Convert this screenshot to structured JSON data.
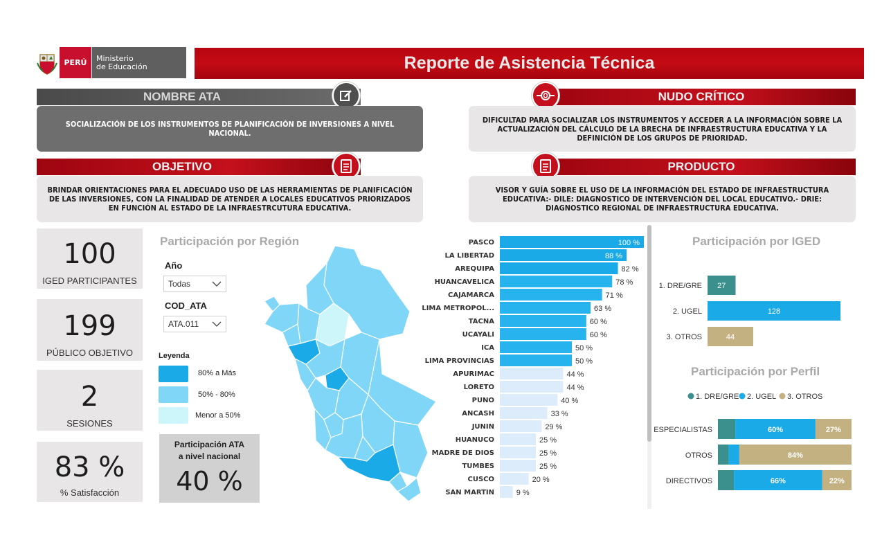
{
  "header": {
    "peru_label": "PERÚ",
    "ministry_line1": "Ministerio",
    "ministry_line2": "de Educación",
    "title": "Reporte de Asistencia Técnica"
  },
  "sections": {
    "nombre_ata": {
      "title": "NOMBRE ATA",
      "text": "SOCIALIZACIÓN DE LOS INSTRUMENTOS DE PLANIFICACIÓN DE INVERSIONES A NIVEL NACIONAL."
    },
    "nudo_critico": {
      "title": "NUDO CRÍTICO",
      "text": "DIFICULTAD PARA SOCIALIZAR LOS INSTRUMENTOS Y ACCEDER  A LA INFORMACIÓN SOBRE LA ACTUALIZACIÓN DEL CÁLCULO DE LA BRECHA DE INFRAESTRUCTURA EDUCATIVA Y LA DEFINICIÓN DE LOS GRUPOS DE PRIORIDAD."
    },
    "objetivo": {
      "title": "OBJETIVO",
      "text": "BRINDAR ORIENTACIONES PARA EL ADECUADO USO DE LAS HERRAMIENTAS DE PLANIFICACIÓN DE LAS INVERSIONES, CON LA FINALIDAD DE ATENDER A LOCALES EDUCATIVOS PRIORIZADOS EN FUNCIÓN AL ESTADO DE LA INFRAESTRCUTURA EDUCATIVA."
    },
    "producto": {
      "title": "PRODUCTO",
      "text": "VISOR Y GUÍA SOBRE EL USO DE LA INFORMACIÓN DEL ESTADO DE INFRAESTRUCTURA EDUCATIVA:- DILE: DIAGNOSTICO DE INTERVENCIÓN DEL LOCAL EDUCATIVO.- DRIE: DIAGNOSTICO REGIONAL DE INFRAESTRUCTURA EDUCATIVA."
    }
  },
  "kpis": [
    {
      "value": "100",
      "label": "IGED PARTICIPANTES"
    },
    {
      "value": "199",
      "label": "PÚBLICO OBJETIVO"
    },
    {
      "value": "2",
      "label": "SESIONES"
    },
    {
      "value": "83 %",
      "label": "% Satisfacción"
    }
  ],
  "region_panel": {
    "title": "Participación por Región",
    "filter_year_label": "Año",
    "filter_year_value": "Todas",
    "filter_ata_label": "COD_ATA",
    "filter_ata_value": "ATA.011",
    "legend_title": "Leyenda",
    "legend": [
      {
        "label": "80% a Más",
        "color": "#1aaae8"
      },
      {
        "label": "50% - 80%",
        "color": "#7fd6f7"
      },
      {
        "label": "Menor a 50%",
        "color": "#cdf6fb"
      }
    ],
    "national_label": "Participación ATA a nivel nacional",
    "national_line1": "Participación ATA",
    "national_line2": "a nivel nacional",
    "national_value": "40 %"
  },
  "chart_data": [
    {
      "type": "bar",
      "orientation": "horizontal",
      "categories": [
        "PASCO",
        "LA LIBERTAD",
        "AREQUIPA",
        "HUANCAVELICA",
        "CAJAMARCA",
        "LIMA METROPOL...",
        "TACNA",
        "UCAYALI",
        "ICA",
        "LIMA PROVINCIAS",
        "APURIMAC",
        "LORETO",
        "PUNO",
        "ANCASH",
        "JUNIN",
        "HUANUCO",
        "MADRE DE DIOS",
        "TUMBES",
        "CUSCO",
        "SAN MARTIN"
      ],
      "values": [
        100,
        88,
        82,
        78,
        71,
        63,
        60,
        60,
        50,
        50,
        44,
        44,
        40,
        33,
        29,
        25,
        25,
        25,
        20,
        9
      ],
      "value_labels": [
        "100 %",
        "88 %",
        "82 %",
        "78 %",
        "71 %",
        "63 %",
        "60 %",
        "60 %",
        "50 %",
        "50 %",
        "44 %",
        "44 %",
        "40 %",
        "33 %",
        "29 %",
        "25 %",
        "25 %",
        "25 %",
        "20 %",
        "9 %"
      ],
      "colors": {
        "high": "#1aaae8",
        "mid": "#27b3ee",
        "low": "#dcecfb"
      },
      "xlim": [
        0,
        100
      ]
    },
    {
      "type": "bar",
      "orientation": "horizontal",
      "title": "Participación por IGED",
      "categories": [
        "1. DRE/GRE",
        "2. UGEL",
        "3. OTROS"
      ],
      "values": [
        27,
        128,
        44
      ],
      "colors": [
        "#3b8f8d",
        "#1aaae8",
        "#c4b182"
      ]
    },
    {
      "type": "bar",
      "orientation": "horizontal",
      "stacked": true,
      "title": "Participación por Perfil",
      "categories": [
        "ESPECIALISTAS",
        "OTROS",
        "DIRECTIVOS"
      ],
      "series": [
        {
          "name": "1. DRE/GRE",
          "color": "#3b8f8d",
          "values": [
            13,
            8,
            12
          ],
          "labels": [
            "",
            "",
            ""
          ]
        },
        {
          "name": "2. UGEL",
          "color": "#1aaae8",
          "values": [
            60,
            8,
            66
          ],
          "labels": [
            "60%",
            "",
            "66%"
          ]
        },
        {
          "name": "3. OTROS",
          "color": "#c4b182",
          "values": [
            27,
            84,
            22
          ],
          "labels": [
            "27%",
            "84%",
            "22%"
          ]
        }
      ]
    }
  ],
  "iged_panel": {
    "title": "Participación por IGED"
  },
  "perfil_panel": {
    "title": "Participación por Perfil"
  }
}
